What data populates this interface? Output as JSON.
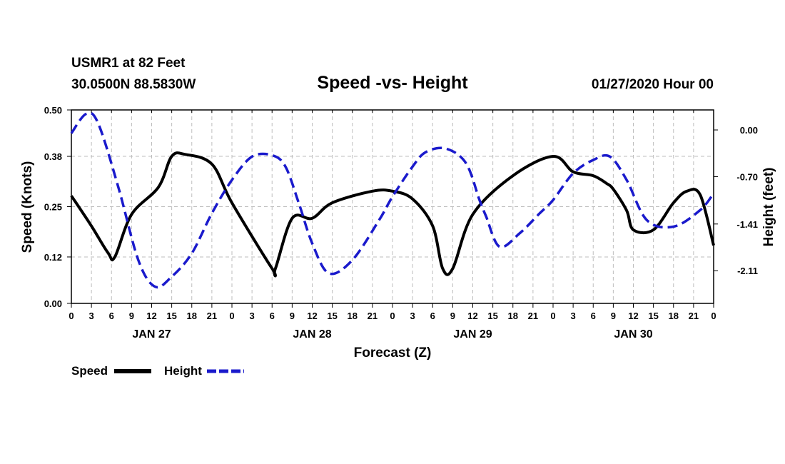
{
  "header": {
    "station": "USMR1 at 82 Feet",
    "coords": "30.0500N 88.5830W",
    "title": "Speed -vs- Height",
    "datetime": "01/27/2020 Hour 00"
  },
  "chart_data": {
    "type": "line",
    "title": "Speed -vs- Height",
    "xlabel": "Forecast (Z)",
    "ylabel": "Speed (Knots)",
    "y2label": "Height (feet)",
    "x_range_hours": [
      0,
      96
    ],
    "x_tick_labels": [
      "0",
      "3",
      "6",
      "9",
      "12",
      "15",
      "18",
      "21",
      "0",
      "3",
      "6",
      "9",
      "12",
      "15",
      "18",
      "21",
      "0",
      "3",
      "6",
      "9",
      "12",
      "15",
      "18",
      "21",
      "0",
      "3",
      "6",
      "9",
      "12",
      "15",
      "18",
      "21",
      "0"
    ],
    "day_labels": [
      {
        "label": "JAN 27",
        "hour": 12
      },
      {
        "label": "JAN 28",
        "hour": 36
      },
      {
        "label": "JAN 29",
        "hour": 60
      },
      {
        "label": "JAN 30",
        "hour": 84
      }
    ],
    "ylim": [
      0,
      0.5
    ],
    "y_tick_labels": [
      "0.00",
      "0.12",
      "0.25",
      "0.38",
      "0.50"
    ],
    "y2lim": [
      -2.6,
      0.3
    ],
    "y2_tick_labels": [
      "0.00",
      "-0.70",
      "-1.41",
      "-2.11"
    ],
    "grid": true,
    "legend": [
      {
        "name": "Speed",
        "color": "#000000",
        "style": "solid"
      },
      {
        "name": "Height",
        "color": "#1a1acc",
        "style": "dashed"
      }
    ],
    "series": [
      {
        "name": "Speed",
        "axis": "left",
        "color": "#000000",
        "hours": [
          0,
          3,
          5.5,
          6.5,
          9,
          13,
          15,
          17,
          21,
          24,
          30,
          30.5,
          33,
          36,
          39,
          45,
          48,
          51,
          54,
          55.5,
          57,
          60,
          66,
          72,
          75,
          78,
          80,
          81,
          83,
          84,
          87,
          90,
          92,
          94,
          96
        ],
        "values": [
          0.278,
          0.2,
          0.13,
          0.12,
          0.23,
          0.3,
          0.38,
          0.385,
          0.36,
          0.26,
          0.09,
          0.09,
          0.22,
          0.22,
          0.26,
          0.29,
          0.29,
          0.27,
          0.2,
          0.09,
          0.09,
          0.23,
          0.33,
          0.38,
          0.34,
          0.33,
          0.31,
          0.295,
          0.24,
          0.19,
          0.19,
          0.26,
          0.29,
          0.28,
          0.15
        ]
      },
      {
        "name": "Height",
        "axis": "right",
        "color": "#1a1acc",
        "hours": [
          0,
          2.2,
          4,
          7,
          10,
          12.5,
          15,
          18,
          21,
          24,
          27,
          30,
          32,
          34,
          36,
          38.5,
          42,
          46,
          48,
          51,
          53,
          56,
          59,
          61,
          62,
          64,
          67,
          70,
          72,
          75,
          78,
          80.5,
          83,
          86,
          90,
          94,
          96
        ],
        "values": [
          -0.05,
          0.24,
          0.1,
          -0.85,
          -1.95,
          -2.35,
          -2.2,
          -1.85,
          -1.25,
          -0.75,
          -0.4,
          -0.38,
          -0.55,
          -1.1,
          -1.7,
          -2.15,
          -1.95,
          -1.35,
          -1.0,
          -0.55,
          -0.33,
          -0.28,
          -0.5,
          -1.05,
          -1.3,
          -1.75,
          -1.55,
          -1.25,
          -1.05,
          -0.65,
          -0.45,
          -0.4,
          -0.75,
          -1.35,
          -1.45,
          -1.2,
          -0.95
        ]
      }
    ]
  }
}
